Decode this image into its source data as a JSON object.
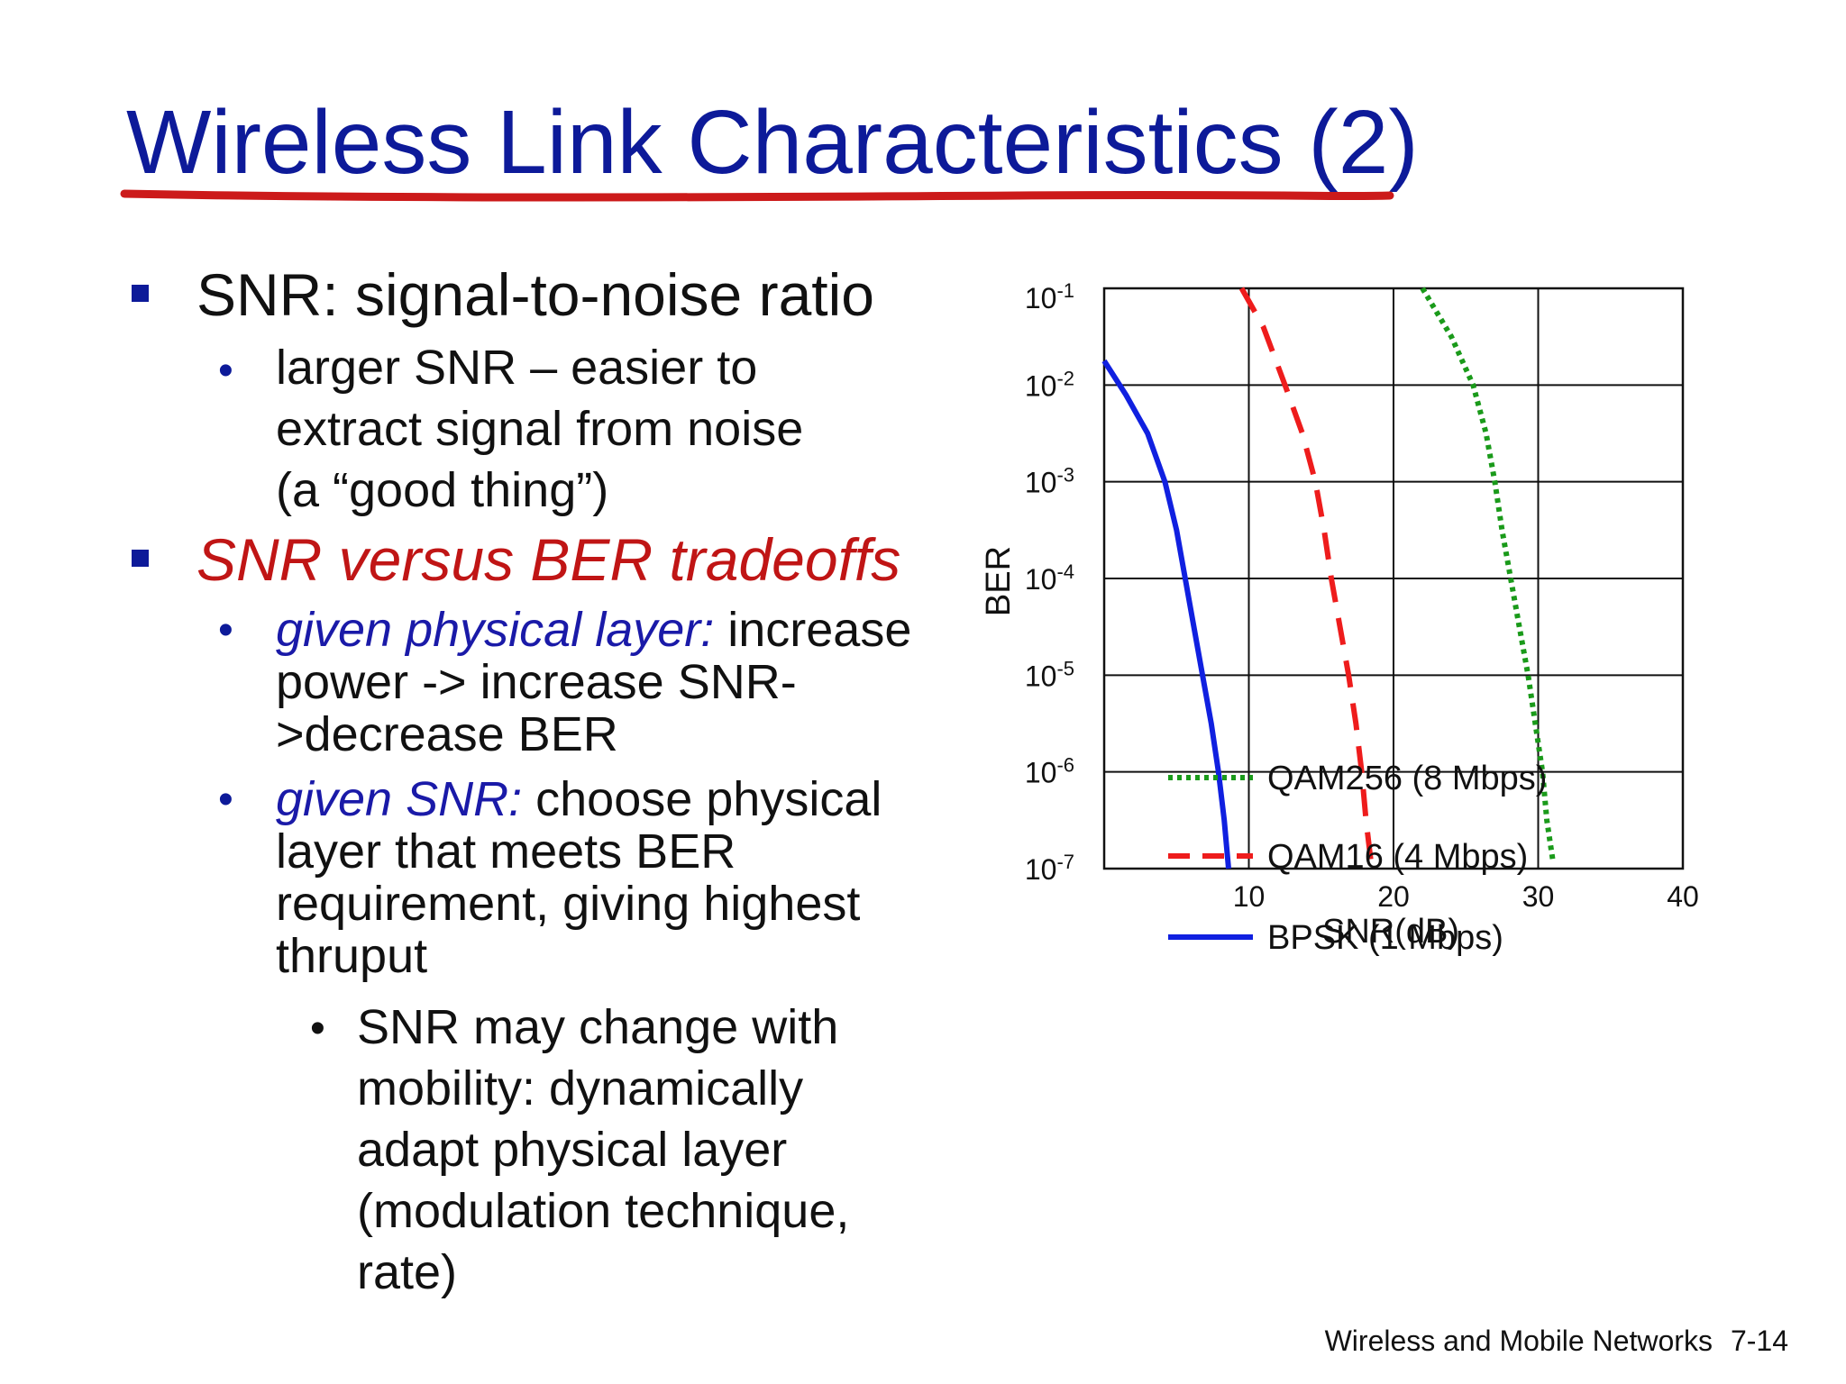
{
  "slide": {
    "title": "Wireless Link Characteristics (2)",
    "footer_text": "Wireless and Mobile Networks",
    "page_number": "7-14"
  },
  "bullets": {
    "b1": "SNR: signal-to-noise ratio",
    "b1_sub_lines": [
      "larger SNR – easier to",
      "extract signal from noise",
      "(a “good thing”)"
    ],
    "b2": "SNR versus BER tradeoffs",
    "b2_sub1_italic": "given physical layer:",
    "b2_sub1_rest": " increase",
    "b2_sub1_lines": [
      "power -> increase SNR-",
      ">decrease BER"
    ],
    "b2_sub2_italic": "given SNR:",
    "b2_sub2_rest": " choose physical",
    "b2_sub2_lines": [
      "layer that meets BER",
      "requirement, giving highest",
      "thruput"
    ],
    "b2_sub3_lines": [
      "SNR may change with",
      "mobility: dynamically",
      "adapt physical layer",
      "(modulation technique,",
      "rate)"
    ]
  },
  "colors": {
    "title": "#0d1a99",
    "underline": "#cc1a1a",
    "bpsk": "#1020e0",
    "qam16": "#ee1c1c",
    "qam256": "#1a9a1a"
  },
  "chart_data": {
    "type": "line",
    "xlabel": "SNR(dB)",
    "ylabel": "BER",
    "xlim": [
      0,
      40
    ],
    "ylim_exponent": [
      -7,
      -1
    ],
    "y_scale": "log",
    "x_ticks": [
      "10",
      "20",
      "30",
      "40"
    ],
    "y_ticks": [
      {
        "base": "10",
        "exp": "-1"
      },
      {
        "base": "10",
        "exp": "-2"
      },
      {
        "base": "10",
        "exp": "-3"
      },
      {
        "base": "10",
        "exp": "-4"
      },
      {
        "base": "10",
        "exp": "-5"
      },
      {
        "base": "10",
        "exp": "-6"
      },
      {
        "base": "10",
        "exp": "-7"
      }
    ],
    "grid": true,
    "legend_position": "bottom-right",
    "series": [
      {
        "name": "QAM256 (8 Mbps)",
        "style": "dotted",
        "points": [
          [
            22.0,
            -1.0
          ],
          [
            24.0,
            -1.5
          ],
          [
            25.5,
            -2.0
          ],
          [
            26.4,
            -2.5
          ],
          [
            27.0,
            -3.0
          ],
          [
            27.5,
            -3.5
          ],
          [
            28.1,
            -4.0
          ],
          [
            28.7,
            -4.5
          ],
          [
            29.3,
            -5.0
          ],
          [
            29.8,
            -5.5
          ],
          [
            30.3,
            -6.0
          ],
          [
            30.6,
            -6.5
          ],
          [
            31.0,
            -6.9
          ]
        ]
      },
      {
        "name": "QAM16 (4 Mbps)",
        "style": "dashed",
        "points": [
          [
            9.5,
            -1.0
          ],
          [
            11.0,
            -1.4
          ],
          [
            12.5,
            -2.0
          ],
          [
            13.7,
            -2.5
          ],
          [
            14.6,
            -3.0
          ],
          [
            15.2,
            -3.5
          ],
          [
            15.7,
            -4.0
          ],
          [
            16.3,
            -4.5
          ],
          [
            16.9,
            -5.0
          ],
          [
            17.4,
            -5.5
          ],
          [
            17.8,
            -6.0
          ],
          [
            18.1,
            -6.5
          ],
          [
            18.5,
            -7.0
          ]
        ]
      },
      {
        "name": "BPSK (1 Mbps)",
        "style": "solid",
        "points": [
          [
            0.0,
            -1.75
          ],
          [
            1.5,
            -2.1
          ],
          [
            3.0,
            -2.5
          ],
          [
            4.2,
            -3.0
          ],
          [
            5.0,
            -3.5
          ],
          [
            5.6,
            -4.0
          ],
          [
            6.2,
            -4.5
          ],
          [
            6.8,
            -5.0
          ],
          [
            7.4,
            -5.5
          ],
          [
            7.9,
            -6.0
          ],
          [
            8.3,
            -6.5
          ],
          [
            8.6,
            -7.0
          ]
        ]
      }
    ]
  }
}
